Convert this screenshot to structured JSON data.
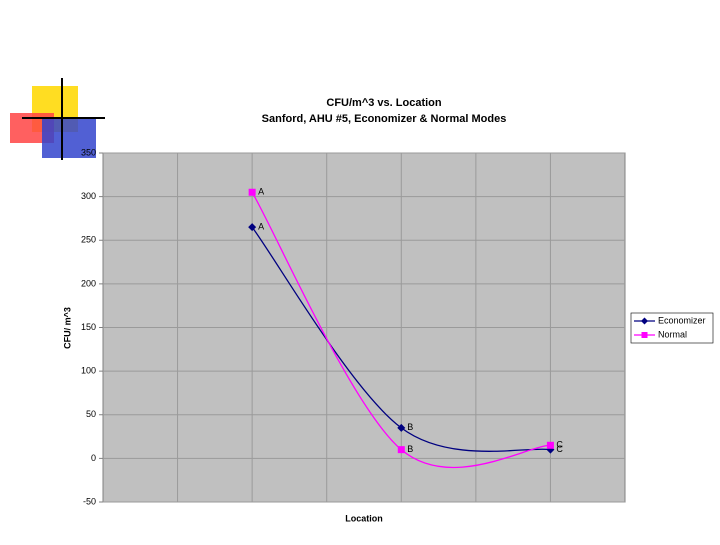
{
  "chart_data": {
    "type": "line",
    "title": "CFU/m^3 vs. Location",
    "subtitle": "Sanford, AHU #5, Economizer & Normal Modes",
    "x_label": "Location",
    "y_label": "CFU/ m^3",
    "x": [
      1,
      2,
      3
    ],
    "xlim": [
      0,
      3.5
    ],
    "ylim": [
      -50,
      350
    ],
    "yticks": [
      -50,
      0,
      50,
      100,
      150,
      200,
      250,
      300,
      350
    ],
    "grid": true,
    "smooth": true,
    "legend": "right",
    "series": [
      {
        "name": "Economizer",
        "color": "#000080",
        "marker": "diamond",
        "values": [
          265,
          35,
          10
        ],
        "labels": [
          "A",
          "B",
          "C"
        ]
      },
      {
        "name": "Normal",
        "color": "#ff00ff",
        "marker": "square",
        "values": [
          305,
          10,
          15
        ],
        "labels": [
          "A",
          "B",
          "C"
        ]
      }
    ]
  }
}
